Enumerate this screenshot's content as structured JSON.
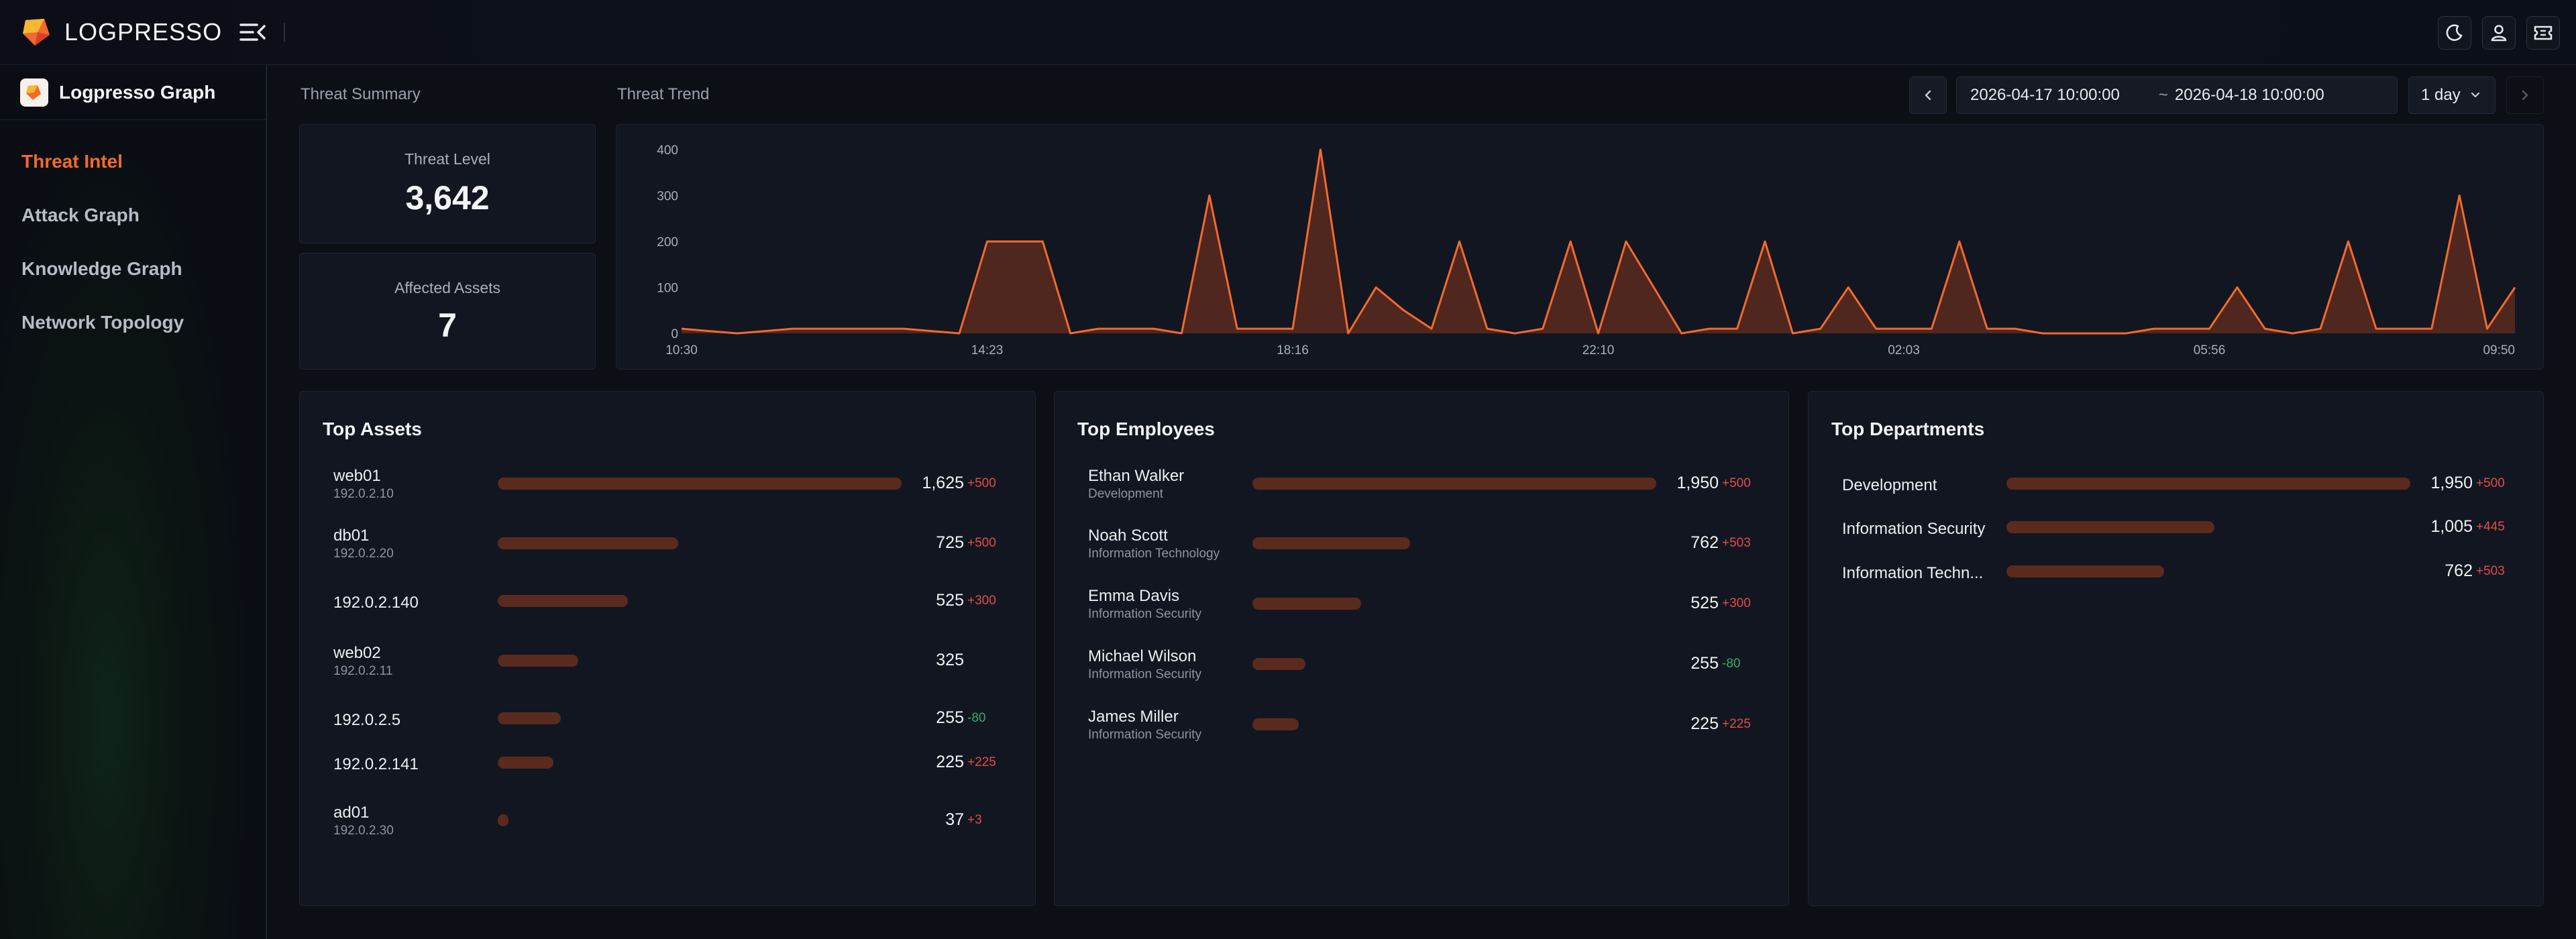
{
  "app": {
    "brand": "LOGPRESSO",
    "app_title": "Logpresso Graph"
  },
  "sidebar": {
    "items": [
      {
        "label": "Threat Intel",
        "active": true
      },
      {
        "label": "Attack Graph",
        "active": false
      },
      {
        "label": "Knowledge Graph",
        "active": false
      },
      {
        "label": "Network Topology",
        "active": false
      }
    ]
  },
  "header_icons": [
    "moon-icon",
    "user-icon",
    "ticket-icon"
  ],
  "summary": {
    "label": "Threat Summary",
    "threat_level": {
      "title": "Threat Level",
      "value": "3,642"
    },
    "affected_assets": {
      "title": "Affected Assets",
      "value": "7"
    }
  },
  "trend": {
    "label": "Threat Trend",
    "date_from": "2026-04-17 10:00:00",
    "date_sep": "~",
    "date_to": "2026-04-18 10:00:00",
    "range": "1 day"
  },
  "colors": {
    "accent": "#f26a2e",
    "bar": "#5a2a1f",
    "area_fill": "#5a2a1f",
    "positive_delta": "#e24b4b",
    "negative_delta": "#2fae6a"
  },
  "chart_data": {
    "type": "area",
    "x_tick_labels": [
      "10:30",
      "14:23",
      "18:16",
      "22:10",
      "02:03",
      "05:56",
      "09:50"
    ],
    "y_tick_labels": [
      "0",
      "100",
      "200",
      "300",
      "400"
    ],
    "ylim": [
      0,
      400
    ],
    "grid": false,
    "series": [
      {
        "values": [
          10,
          5,
          0,
          5,
          10,
          10,
          10,
          10,
          10,
          5,
          0,
          200,
          200,
          200,
          0,
          10,
          10,
          10,
          0,
          300,
          10,
          10,
          10,
          400,
          0,
          100,
          50,
          10,
          200,
          10,
          0,
          10,
          200,
          0,
          200,
          100,
          0,
          10,
          10,
          200,
          0,
          10,
          100,
          10,
          10,
          10,
          200,
          10,
          10,
          0,
          0,
          0,
          0,
          10,
          10,
          10,
          100,
          10,
          0,
          10,
          200,
          10,
          10,
          10,
          300,
          10,
          100
        ]
      }
    ]
  },
  "top_assets": {
    "title": "Top Assets",
    "rows": [
      {
        "name": "web01",
        "sub": "192.0.2.10",
        "value": "1,625",
        "delta": "+500",
        "dir": "pos",
        "count": 1625
      },
      {
        "name": "db01",
        "sub": "192.0.2.20",
        "value": "725",
        "delta": "+500",
        "dir": "pos",
        "count": 725
      },
      {
        "name": "192.0.2.140",
        "sub": "",
        "value": "525",
        "delta": "+300",
        "dir": "pos",
        "count": 525
      },
      {
        "name": "web02",
        "sub": "192.0.2.11",
        "value": "325",
        "delta": "",
        "dir": "pos",
        "count": 325
      },
      {
        "name": "192.0.2.5",
        "sub": "",
        "value": "255",
        "delta": "-80",
        "dir": "neg",
        "count": 255
      },
      {
        "name": "192.0.2.141",
        "sub": "",
        "value": "225",
        "delta": "+225",
        "dir": "pos",
        "count": 225
      },
      {
        "name": "ad01",
        "sub": "192.0.2.30",
        "value": "37",
        "delta": "+3",
        "dir": "pos",
        "count": 37
      }
    ]
  },
  "top_employees": {
    "title": "Top Employees",
    "rows": [
      {
        "name": "Ethan Walker",
        "sub": "Development",
        "value": "1,950",
        "delta": "+500",
        "dir": "pos",
        "count": 1950
      },
      {
        "name": "Noah Scott",
        "sub": "Information Technology",
        "value": "762",
        "delta": "+503",
        "dir": "pos",
        "count": 762
      },
      {
        "name": "Emma Davis",
        "sub": "Information Security",
        "value": "525",
        "delta": "+300",
        "dir": "pos",
        "count": 525
      },
      {
        "name": "Michael Wilson",
        "sub": "Information Security",
        "value": "255",
        "delta": "-80",
        "dir": "neg",
        "count": 255
      },
      {
        "name": "James Miller",
        "sub": "Information Security",
        "value": "225",
        "delta": "+225",
        "dir": "pos",
        "count": 225
      }
    ]
  },
  "top_departments": {
    "title": "Top Departments",
    "rows": [
      {
        "name": "Development",
        "sub": "",
        "value": "1,950",
        "delta": "+500",
        "dir": "pos",
        "count": 1950
      },
      {
        "name": "Information Security",
        "sub": "",
        "value": "1,005",
        "delta": "+445",
        "dir": "pos",
        "count": 1005
      },
      {
        "name": "Information Techn...",
        "sub": "",
        "value": "762",
        "delta": "+503",
        "dir": "pos",
        "count": 762
      }
    ]
  }
}
